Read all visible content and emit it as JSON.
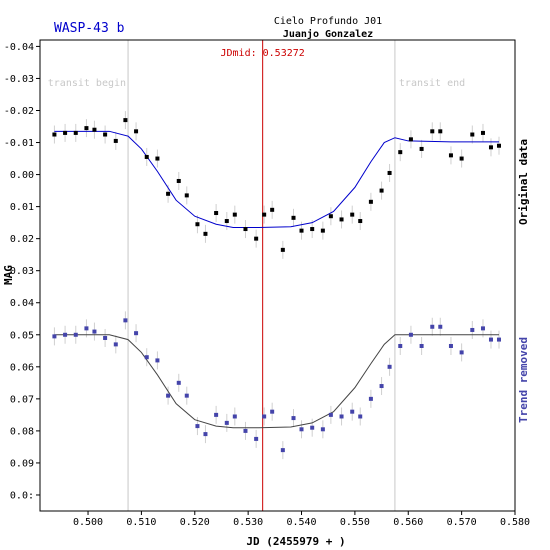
{
  "chart_data": {
    "type": "scatter",
    "title": "WASP-43 b",
    "observatory": "Cielo Profundo J01",
    "observer": "Juanjo Gonzalez",
    "xlabel": "JD (2455979 + )",
    "ylabel": "MAG",
    "xlim": [
      0.491,
      0.58
    ],
    "ylim": [
      -0.042,
      0.105
    ],
    "y_inverted": true,
    "x_ticks": [
      "0.500",
      "0.510",
      "0.520",
      "0.530",
      "0.540",
      "0.550",
      "0.560",
      "0.570",
      "0.580"
    ],
    "x_tick_values": [
      0.5,
      0.51,
      0.52,
      0.53,
      0.54,
      0.55,
      0.56,
      0.57,
      0.58
    ],
    "y_ticks": [
      "-0.04",
      "-0.03",
      "-0.02",
      "-0.01",
      "0.00",
      "0.01",
      "0.02",
      "0.03",
      "0.04",
      "0.05",
      "0.06",
      "0.07",
      "0.08",
      "0.09",
      "0.0:"
    ],
    "y_tick_values": [
      -0.04,
      -0.03,
      -0.02,
      -0.01,
      0.0,
      0.01,
      0.02,
      0.03,
      0.04,
      0.05,
      0.06,
      0.07,
      0.08,
      0.09,
      0.1
    ],
    "annotations": {
      "jdmid_label": "JDmid: 0.53272",
      "jdmid_x": 0.53272,
      "transit_begin_label": "transit begin",
      "transit_begin_x": 0.5075,
      "transit_end_label": "transit end",
      "transit_end_x": 0.5575
    },
    "grid": false,
    "series": [
      {
        "name": "Original data",
        "color": "#000000",
        "model_color": "#0000cc",
        "x": [
          0.4937,
          0.4957,
          0.4977,
          0.4997,
          0.5012,
          0.5032,
          0.5052,
          0.507,
          0.509,
          0.511,
          0.513,
          0.515,
          0.517,
          0.5185,
          0.5205,
          0.522,
          0.524,
          0.526,
          0.5275,
          0.5295,
          0.5315,
          0.533,
          0.5345,
          0.5365,
          0.5385,
          0.54,
          0.542,
          0.544,
          0.5455,
          0.5475,
          0.5495,
          0.551,
          0.553,
          0.555,
          0.5565,
          0.5585,
          0.5605,
          0.5625,
          0.5645,
          0.566,
          0.568,
          0.57,
          0.572,
          0.574,
          0.5755,
          0.577
        ],
        "y": [
          -0.0125,
          -0.013,
          -0.013,
          -0.0145,
          -0.014,
          -0.0125,
          -0.0105,
          -0.017,
          -0.0135,
          -0.0055,
          -0.005,
          0.006,
          0.002,
          0.0065,
          0.0155,
          0.0185,
          0.012,
          0.0145,
          0.0125,
          0.017,
          0.02,
          0.0125,
          0.011,
          0.0235,
          0.0135,
          0.0175,
          0.017,
          0.0175,
          0.013,
          0.014,
          0.0125,
          0.0145,
          0.0085,
          0.005,
          -0.0005,
          -0.007,
          -0.011,
          -0.008,
          -0.0135,
          -0.0135,
          -0.006,
          -0.005,
          -0.0125,
          -0.013,
          -0.0085,
          -0.009
        ],
        "model_x": [
          0.4937,
          0.504,
          0.5075,
          0.51,
          0.513,
          0.5165,
          0.52,
          0.524,
          0.5272,
          0.532,
          0.538,
          0.542,
          0.546,
          0.55,
          0.553,
          0.5555,
          0.5575,
          0.56,
          0.568,
          0.577
        ],
        "model_y": [
          -0.0135,
          -0.0135,
          -0.012,
          -0.008,
          -0.001,
          0.008,
          0.013,
          0.0155,
          0.0165,
          0.0165,
          0.0163,
          0.015,
          0.0115,
          0.004,
          -0.004,
          -0.01,
          -0.0115,
          -0.0105,
          -0.0102,
          -0.0102
        ]
      },
      {
        "name": "Trend removed",
        "color": "#4444aa",
        "model_color": "#444444",
        "x": [
          0.4937,
          0.4957,
          0.4977,
          0.4997,
          0.5012,
          0.5032,
          0.5052,
          0.507,
          0.509,
          0.511,
          0.513,
          0.515,
          0.517,
          0.5185,
          0.5205,
          0.522,
          0.524,
          0.526,
          0.5275,
          0.5295,
          0.5315,
          0.533,
          0.5345,
          0.5365,
          0.5385,
          0.54,
          0.542,
          0.544,
          0.5455,
          0.5475,
          0.5495,
          0.551,
          0.553,
          0.555,
          0.5565,
          0.5585,
          0.5605,
          0.5625,
          0.5645,
          0.566,
          0.568,
          0.57,
          0.572,
          0.574,
          0.5755,
          0.577
        ],
        "y": [
          0.0505,
          0.05,
          0.05,
          0.048,
          0.049,
          0.051,
          0.053,
          0.0455,
          0.0495,
          0.057,
          0.058,
          0.069,
          0.065,
          0.069,
          0.0785,
          0.081,
          0.075,
          0.0775,
          0.0755,
          0.08,
          0.0825,
          0.0755,
          0.074,
          0.086,
          0.076,
          0.0795,
          0.079,
          0.0795,
          0.075,
          0.0755,
          0.074,
          0.0755,
          0.07,
          0.066,
          0.06,
          0.0535,
          0.05,
          0.0535,
          0.0475,
          0.0475,
          0.0535,
          0.0555,
          0.0485,
          0.048,
          0.0515,
          0.0515
        ],
        "model_x": [
          0.4937,
          0.504,
          0.5075,
          0.51,
          0.513,
          0.5165,
          0.52,
          0.524,
          0.5272,
          0.532,
          0.538,
          0.542,
          0.546,
          0.55,
          0.553,
          0.5555,
          0.5575,
          0.56,
          0.568,
          0.577
        ],
        "model_y": [
          0.05,
          0.05,
          0.0515,
          0.0555,
          0.0625,
          0.0715,
          0.0765,
          0.0785,
          0.079,
          0.079,
          0.0788,
          0.0775,
          0.074,
          0.0665,
          0.059,
          0.053,
          0.05,
          0.05,
          0.05,
          0.05
        ]
      }
    ]
  }
}
